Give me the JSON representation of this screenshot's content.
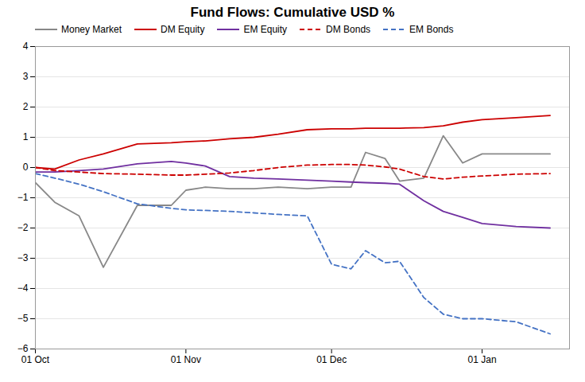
{
  "chart_data": {
    "type": "line",
    "title": "Fund Flows: Cumulative USD %",
    "x": [
      0,
      4,
      9,
      14,
      21,
      28,
      31,
      35,
      40,
      45,
      50,
      56,
      61,
      65,
      68,
      72,
      75,
      80,
      84,
      88,
      92,
      99,
      106
    ],
    "xlim": [
      0,
      110
    ],
    "xticks": [
      {
        "value": 0,
        "label": "01 Oct"
      },
      {
        "value": 31,
        "label": "01 Nov"
      },
      {
        "value": 61,
        "label": "01 Dec"
      },
      {
        "value": 92,
        "label": "01 Jan"
      }
    ],
    "ylim": [
      -6,
      4
    ],
    "yticks": [
      -6,
      -5,
      -4,
      -3,
      -2,
      -1,
      0,
      1,
      2,
      3,
      4
    ],
    "grid": "y",
    "legend": "upper left",
    "series": [
      {
        "name": "Money Market",
        "color": "#888888",
        "line_style": "solid",
        "values": [
          -0.5,
          -1.15,
          -1.6,
          -3.3,
          -1.25,
          -1.25,
          -0.75,
          -0.65,
          -0.7,
          -0.7,
          -0.65,
          -0.7,
          -0.65,
          -0.65,
          0.5,
          0.3,
          -0.45,
          -0.35,
          1.05,
          0.15,
          0.45,
          0.45,
          0.45
        ]
      },
      {
        "name": "DM Equity",
        "color": "#cc0000",
        "line_style": "solid",
        "values": [
          0.0,
          -0.05,
          0.25,
          0.45,
          0.78,
          0.82,
          0.85,
          0.88,
          0.95,
          1.0,
          1.1,
          1.25,
          1.28,
          1.28,
          1.3,
          1.3,
          1.3,
          1.32,
          1.38,
          1.5,
          1.58,
          1.65,
          1.72
        ]
      },
      {
        "name": "EM Equity",
        "color": "#7030a0",
        "line_style": "solid",
        "values": [
          -0.15,
          -0.15,
          -0.1,
          -0.05,
          0.12,
          0.2,
          0.15,
          0.05,
          -0.3,
          -0.35,
          -0.38,
          -0.42,
          -0.45,
          -0.48,
          -0.5,
          -0.52,
          -0.55,
          -1.1,
          -1.45,
          -1.65,
          -1.85,
          -1.95,
          -2.0
        ]
      },
      {
        "name": "DM Bonds",
        "color": "#cc0000",
        "line_style": "dashed",
        "values": [
          0.0,
          -0.1,
          -0.15,
          -0.2,
          -0.22,
          -0.25,
          -0.25,
          -0.22,
          -0.18,
          -0.1,
          0.0,
          0.08,
          0.1,
          0.1,
          0.08,
          0.02,
          -0.05,
          -0.3,
          -0.38,
          -0.32,
          -0.28,
          -0.22,
          -0.2
        ]
      },
      {
        "name": "EM Bonds",
        "color": "#4472c4",
        "line_style": "dashed",
        "values": [
          -0.2,
          -0.35,
          -0.55,
          -0.8,
          -1.2,
          -1.35,
          -1.4,
          -1.42,
          -1.45,
          -1.5,
          -1.55,
          -1.6,
          -3.2,
          -3.35,
          -2.75,
          -3.15,
          -3.1,
          -4.3,
          -4.85,
          -5.0,
          -5.0,
          -5.1,
          -5.5
        ]
      }
    ]
  }
}
